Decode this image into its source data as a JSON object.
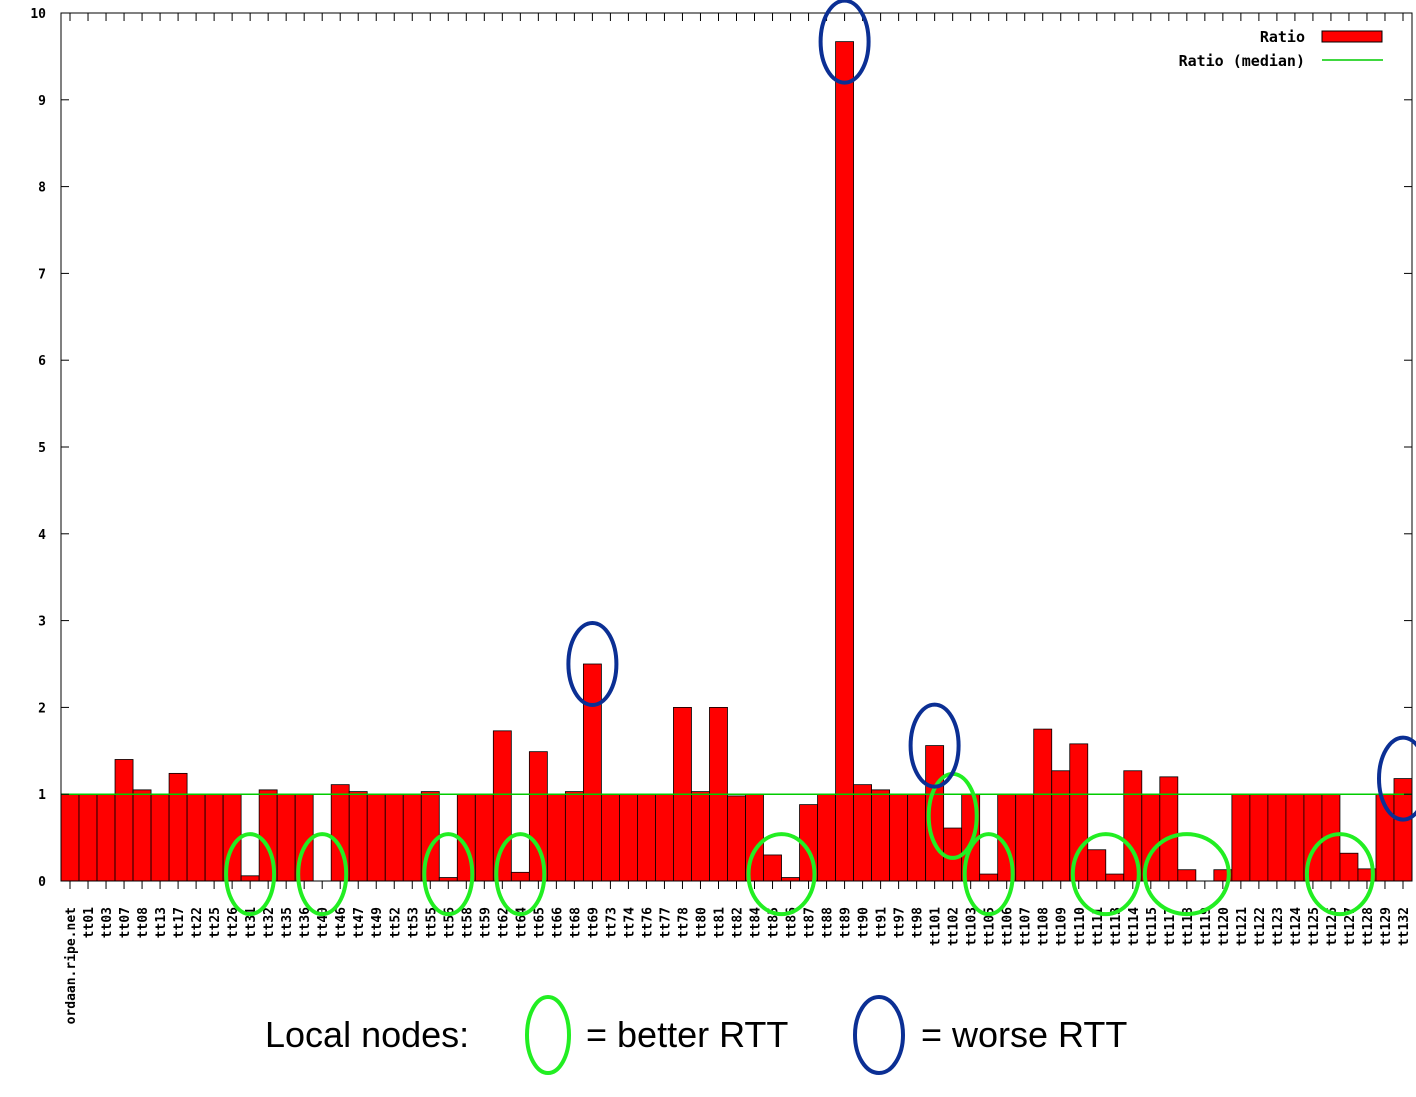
{
  "chart_data": {
    "type": "bar",
    "ylim": [
      0,
      10
    ],
    "yticks": [
      "0",
      "1",
      "2",
      "3",
      "4",
      "5",
      "6",
      "7",
      "8",
      "9",
      "10"
    ],
    "grid": false,
    "legend_position": "top-right",
    "categories": [
      "ordaan.ripe.net",
      "tt01",
      "tt03",
      "tt07",
      "tt08",
      "tt13",
      "tt17",
      "tt22",
      "tt25",
      "tt26",
      "tt31",
      "tt32",
      "tt35",
      "tt36",
      "tt40",
      "tt46",
      "tt47",
      "tt49",
      "tt52",
      "tt53",
      "tt55",
      "tt56",
      "tt58",
      "tt59",
      "tt62",
      "tt64",
      "tt65",
      "tt66",
      "tt68",
      "tt69",
      "tt73",
      "tt74",
      "tt76",
      "tt77",
      "tt78",
      "tt80",
      "tt81",
      "tt82",
      "tt84",
      "tt85",
      "tt86",
      "tt87",
      "tt88",
      "tt89",
      "tt90",
      "tt91",
      "tt97",
      "tt98",
      "tt101",
      "tt102",
      "tt103",
      "tt105",
      "tt106",
      "tt107",
      "tt108",
      "tt109",
      "tt110",
      "tt111",
      "tt113",
      "tt114",
      "tt115",
      "tt117",
      "tt118",
      "tt119",
      "tt120",
      "tt121",
      "tt122",
      "tt123",
      "tt124",
      "tt125",
      "tt126",
      "tt127",
      "tt128",
      "tt129",
      "tt132"
    ],
    "series": [
      {
        "name": "Ratio",
        "color": "#ff0000",
        "values": [
          1.0,
          1.0,
          1.0,
          1.4,
          1.05,
          1.0,
          1.24,
          1.0,
          1.0,
          1.0,
          0.06,
          1.05,
          1.0,
          1.0,
          0.0,
          1.11,
          1.03,
          1.0,
          1.0,
          1.0,
          1.03,
          0.04,
          1.0,
          1.0,
          1.73,
          0.1,
          1.49,
          1.0,
          1.03,
          2.5,
          1.0,
          1.0,
          1.0,
          1.0,
          2.0,
          1.03,
          2.0,
          0.98,
          1.0,
          0.3,
          0.04,
          0.88,
          1.0,
          9.67,
          1.11,
          1.05,
          1.0,
          1.0,
          1.56,
          0.61,
          1.0,
          0.08,
          1.0,
          1.0,
          1.75,
          1.27,
          1.58,
          0.36,
          0.08,
          1.27,
          1.0,
          1.2,
          0.13,
          0.0,
          0.13,
          1.0,
          1.0,
          1.0,
          1.0,
          1.0,
          1.0,
          0.32,
          0.14,
          1.0,
          1.18
        ]
      },
      {
        "name": "Ratio (median)",
        "type": "line",
        "color": "#00cc00",
        "value": 1.0
      }
    ],
    "x_label_truncated_category": "ordaan.ripe.net",
    "annotations": {
      "better_rtt_categories": [
        "tt31",
        "tt40",
        "tt56",
        "tt64",
        "tt85",
        "tt86",
        "tt102",
        "tt105",
        "tt111",
        "tt113",
        "tt117",
        "tt118",
        "tt119",
        "tt126",
        "tt127"
      ],
      "worse_rtt_categories": [
        "tt89",
        "tt69",
        "tt101",
        "tt132"
      ]
    }
  },
  "caption": {
    "prefix": "Local nodes:",
    "better": "= better RTT",
    "worse": "= worse RTT"
  },
  "colors": {
    "better_circle": "#22ee22",
    "worse_circle": "#0b2f94",
    "axis": "#000000"
  }
}
